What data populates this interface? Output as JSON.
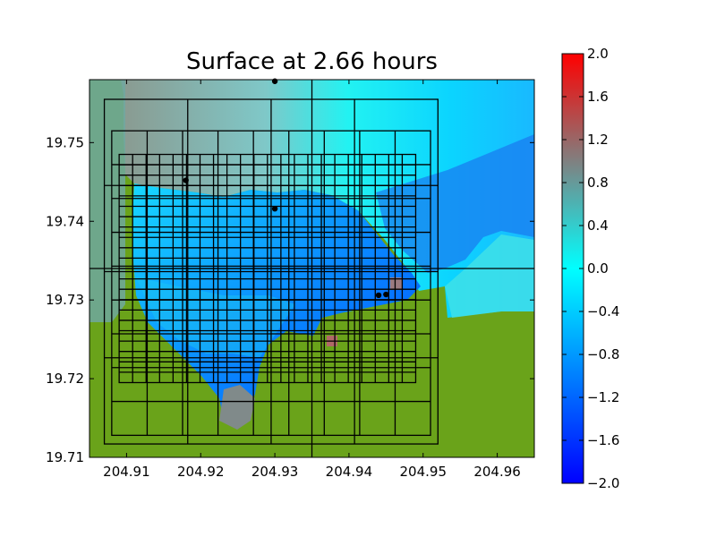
{
  "chart_data": {
    "type": "heatmap",
    "title": "Surface at 2.66 hours",
    "xlabel": "",
    "ylabel": "",
    "xlim": [
      204.905,
      204.965
    ],
    "ylim": [
      19.71,
      19.758
    ],
    "x_ticks": [
      "204.91",
      "204.92",
      "204.93",
      "204.94",
      "204.95",
      "204.96"
    ],
    "x_tick_values": [
      204.91,
      204.92,
      204.93,
      204.94,
      204.95,
      204.96
    ],
    "y_ticks": [
      "19.71",
      "19.72",
      "19.73",
      "19.74",
      "19.75"
    ],
    "y_tick_values": [
      19.71,
      19.72,
      19.73,
      19.74,
      19.75
    ],
    "colorbar": {
      "min": -2.0,
      "max": 2.0,
      "ticks": [
        "2.0",
        "1.6",
        "1.2",
        "0.8",
        "0.4",
        "0.0",
        "−0.4",
        "−0.8",
        "−1.2",
        "−1.6",
        "−2.0"
      ],
      "tick_values": [
        2.0,
        1.6,
        1.2,
        0.8,
        0.4,
        0.0,
        -0.4,
        -0.8,
        -1.2,
        -1.6,
        -2.0
      ],
      "colors": [
        "#0000ff",
        "#00ffff",
        "#ff0000"
      ]
    },
    "land_color": "#6aa31a",
    "grid": false,
    "gauges": [
      [
        204.93,
        19.7578
      ],
      [
        204.918,
        19.7452
      ],
      [
        204.93,
        19.7416
      ],
      [
        204.944,
        19.7306
      ],
      [
        204.945,
        19.7307
      ]
    ],
    "amr_patches": [
      [
        204.907,
        204.952,
        19.7117,
        19.7555
      ],
      [
        204.908,
        204.951,
        19.7128,
        19.7515
      ],
      [
        204.909,
        204.949,
        19.7195,
        19.7485
      ]
    ],
    "crosshair": [
      204.935,
      19.734
    ]
  }
}
